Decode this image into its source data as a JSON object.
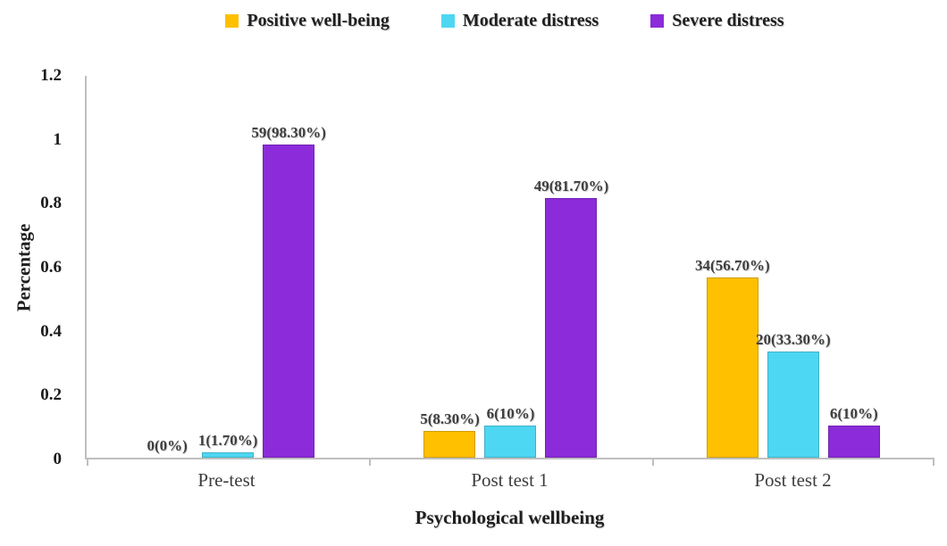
{
  "chart_data": {
    "type": "bar",
    "title": "",
    "xlabel": "Psychological wellbeing",
    "ylabel": "Percentage",
    "categories": [
      "Pre-test",
      "Post test 1",
      "Post test 2"
    ],
    "series": [
      {
        "name": "Positive well-being",
        "color": "#FFC000",
        "values": [
          0,
          0.083,
          0.567
        ],
        "labels": [
          "0(0%)",
          "5(8.30%)",
          "34(56.70%)"
        ]
      },
      {
        "name": "Moderate distress",
        "color": "#4ED7F2",
        "values": [
          0.017,
          0.1,
          0.333
        ],
        "labels": [
          "1(1.70%)",
          "6(10%)",
          "20(33.30%)"
        ]
      },
      {
        "name": "Severe distress",
        "color": "#8B2BD9",
        "values": [
          0.983,
          0.817,
          0.1
        ],
        "labels": [
          "59(98.30%)",
          "49(81.70%)",
          "6(10%)"
        ]
      }
    ],
    "ylim": [
      0,
      1.2
    ],
    "yticks": [
      "0",
      "0.2",
      "0.4",
      "0.6",
      "0.8",
      "1",
      "1.2"
    ],
    "legend_position": "top",
    "grid": false,
    "axis_color": "#bfbfbf"
  }
}
